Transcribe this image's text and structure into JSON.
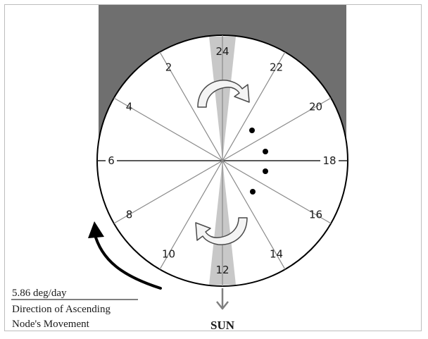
{
  "colors": {
    "shadow": "#6f6f6f",
    "wedge": "#c8c8c8",
    "circle_fill": "#ffffff",
    "line": "#000000",
    "spoke": "#7a7a7a",
    "arrow_gray": "#7f7f7f"
  },
  "clock_labels": [
    "24",
    "2",
    "4",
    "6",
    "8",
    "10",
    "12",
    "14",
    "16",
    "18",
    "20",
    "22"
  ],
  "rate_label": "5.86 deg/day",
  "caption_line1": "Direction of Ascending",
  "caption_line2": "Node's Movement",
  "sun_label": "SUN",
  "icons": {
    "top_rotation": "curved-rotation-arrow-icon",
    "bottom_rotation": "curved-rotation-arrow-icon",
    "sun_direction": "down-arrow-icon",
    "node_direction": "curved-arrow-icon"
  }
}
